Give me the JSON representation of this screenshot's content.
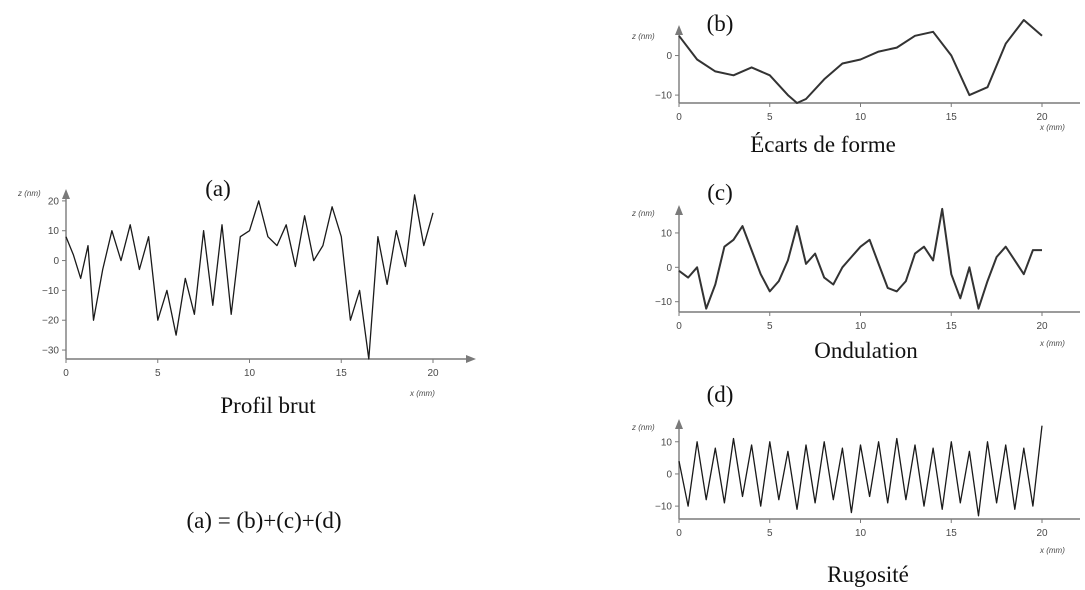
{
  "equation": "(a) = (b)+(c)+(d)",
  "chart_data": [
    {
      "type": "line",
      "label": "(a)",
      "caption": "Profil brut",
      "xlabel": "x (mm)",
      "ylabel": "z (nm)",
      "xlim": [
        0,
        20
      ],
      "ylim": [
        -33,
        27
      ],
      "xticks": [
        0,
        5,
        10,
        15,
        20
      ],
      "yticks": [
        -30,
        -20,
        -10,
        0,
        10,
        20
      ],
      "color": "#1a1a1a",
      "series": [
        {
          "x": [
            0,
            0.4,
            0.8,
            1.2,
            1.5,
            2,
            2.5,
            3,
            3.5,
            4,
            4.5,
            5,
            5.5,
            6,
            6.5,
            7,
            7.5,
            8,
            8.5,
            9,
            9.5,
            10,
            10.5,
            11,
            11.5,
            12,
            12.5,
            13,
            13.5,
            14,
            14.5,
            15,
            15.5,
            16,
            16.5,
            17,
            17.5,
            18,
            18.5,
            19,
            19.5,
            20
          ],
          "values": [
            8,
            2,
            -6,
            5,
            -20,
            -3,
            10,
            0,
            12,
            -3,
            8,
            -20,
            -10,
            -25,
            -6,
            -18,
            10,
            -15,
            12,
            -18,
            8,
            10,
            20,
            8,
            5,
            12,
            -2,
            15,
            0,
            5,
            18,
            8,
            -20,
            -10,
            -33,
            8,
            -8,
            10,
            -2,
            22,
            5,
            16
          ]
        }
      ]
    },
    {
      "type": "line",
      "label": "(b)",
      "caption": "Écarts de forme",
      "xlabel": "x (mm)",
      "ylabel": "z (nm)",
      "xlim": [
        0,
        20
      ],
      "ylim": [
        -12,
        10
      ],
      "xticks": [
        0,
        5,
        10,
        15,
        20
      ],
      "yticks": [
        -10,
        0
      ],
      "color": "#333333",
      "series": [
        {
          "x": [
            0,
            1,
            2,
            3,
            4,
            5,
            6,
            6.5,
            7,
            8,
            9,
            10,
            11,
            12,
            13,
            14,
            15,
            16,
            17,
            18,
            19,
            20
          ],
          "values": [
            5,
            -1,
            -4,
            -5,
            -3,
            -5,
            -10,
            -12,
            -11,
            -6,
            -2,
            -1,
            1,
            2,
            5,
            6,
            0,
            -10,
            -8,
            3,
            9,
            5
          ]
        }
      ]
    },
    {
      "type": "line",
      "label": "(c)",
      "caption": "Ondulation",
      "xlabel": "x (mm)",
      "ylabel": "z (nm)",
      "xlim": [
        0,
        20
      ],
      "ylim": [
        -13,
        19
      ],
      "xticks": [
        0,
        5,
        10,
        15,
        20
      ],
      "yticks": [
        -10,
        0,
        10
      ],
      "color": "#333333",
      "series": [
        {
          "x": [
            0,
            0.5,
            1,
            1.5,
            2,
            2.5,
            3,
            3.5,
            4,
            4.5,
            5,
            5.5,
            6,
            6.5,
            7,
            7.5,
            8,
            8.5,
            9,
            9.5,
            10,
            10.5,
            11,
            11.5,
            12,
            12.5,
            13,
            13.5,
            14,
            14.5,
            15,
            15.5,
            16,
            16.5,
            17,
            17.5,
            18,
            18.5,
            19,
            19.5,
            20
          ],
          "values": [
            -1,
            -3,
            0,
            -12,
            -5,
            6,
            8,
            12,
            5,
            -2,
            -7,
            -4,
            2,
            12,
            1,
            4,
            -3,
            -5,
            0,
            3,
            6,
            8,
            1,
            -6,
            -7,
            -4,
            4,
            6,
            2,
            17,
            -2,
            -9,
            0,
            -12,
            -4,
            3,
            6,
            2,
            -2,
            5,
            5
          ]
        }
      ]
    },
    {
      "type": "line",
      "label": "(d)",
      "caption": "Rugosité",
      "xlabel": "x (mm)",
      "ylabel": "z (nm)",
      "xlim": [
        0,
        20
      ],
      "ylim": [
        -14,
        18
      ],
      "xticks": [
        0,
        5,
        10,
        15,
        20
      ],
      "yticks": [
        -10,
        0,
        10
      ],
      "color": "#1a1a1a",
      "series": [
        {
          "x": [
            0,
            0.5,
            1,
            1.5,
            2,
            2.5,
            3,
            3.5,
            4,
            4.5,
            5,
            5.5,
            6,
            6.5,
            7,
            7.5,
            8,
            8.5,
            9,
            9.5,
            10,
            10.5,
            11,
            11.5,
            12,
            12.5,
            13,
            13.5,
            14,
            14.5,
            15,
            15.5,
            16,
            16.5,
            17,
            17.5,
            18,
            18.5,
            19,
            19.5,
            20
          ],
          "values": [
            4,
            -10,
            10,
            -8,
            8,
            -9,
            11,
            -7,
            9,
            -10,
            10,
            -8,
            7,
            -11,
            9,
            -9,
            10,
            -8,
            8,
            -12,
            9,
            -7,
            10,
            -9,
            11,
            -8,
            9,
            -10,
            8,
            -11,
            10,
            -9,
            7,
            -13,
            10,
            -9,
            9,
            -11,
            8,
            -10,
            15
          ]
        }
      ]
    }
  ]
}
